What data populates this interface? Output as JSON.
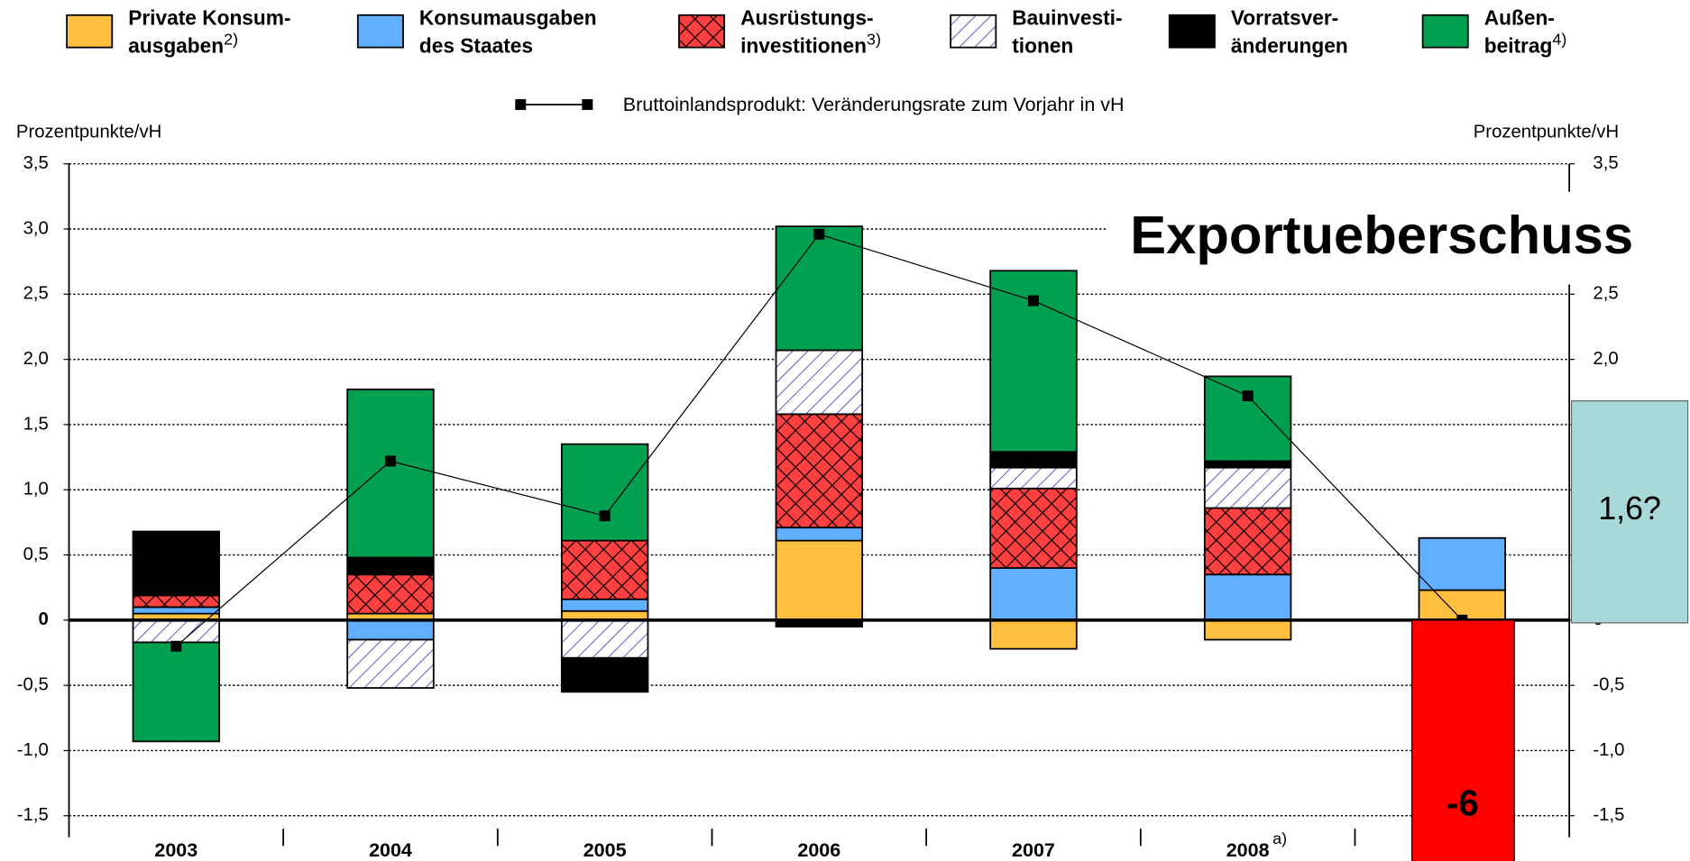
{
  "chart_data": {
    "type": "bar",
    "stacked": true,
    "categories": [
      "2003",
      "2004",
      "2005",
      "2006",
      "2007",
      "2008",
      null
    ],
    "category_notes": [
      null,
      null,
      null,
      null,
      null,
      "a)",
      null
    ],
    "y_label": "Prozentpunkte/vH",
    "y2_label": "Prozentpunkte/vH",
    "ylim": [
      -1.5,
      3.5
    ],
    "yticks": [
      {
        "value": -1.5,
        "label": "-1,5"
      },
      {
        "value": -1.0,
        "label": "-1,0"
      },
      {
        "value": -0.5,
        "label": "-0,5"
      },
      0,
      {
        "value": 0.5,
        "label": "0,5"
      },
      {
        "value": 1.0,
        "label": "1,0"
      },
      {
        "value": 1.5,
        "label": "1,5"
      },
      {
        "value": 2.0,
        "label": "2,0"
      },
      {
        "value": 2.5,
        "label": "2,5"
      },
      {
        "value": 3.0,
        "label": "3,0"
      },
      {
        "value": 3.5,
        "label": "3,5"
      }
    ],
    "grid": true,
    "legend": "top",
    "series": [
      {
        "name": "Private Konsum-\nausgaben",
        "note": "2)",
        "color": "#ffc040",
        "values": [
          0.05,
          0.05,
          0.07,
          0.61,
          -0.22,
          -0.15,
          0.23
        ]
      },
      {
        "name": "Konsumausgaben\ndes Staates",
        "color": "#60b0ff",
        "values": [
          0.05,
          -0.15,
          0.09,
          0.1,
          0.4,
          0.35,
          0.4
        ]
      },
      {
        "name": "Ausrüstungs-\ninvestitionen",
        "note": "3)",
        "color": "#ff4040",
        "hatch": "cross",
        "values": [
          0.09,
          0.3,
          0.45,
          0.87,
          0.61,
          0.51,
          null
        ]
      },
      {
        "name": "Bauinvesti-\ntionen",
        "color": "#ffffff",
        "hatch": "diagonal",
        "values": [
          -0.17,
          -0.37,
          -0.29,
          0.49,
          0.16,
          0.31,
          null
        ]
      },
      {
        "name": "Vorratsver-\nänderungen",
        "color": "#000000",
        "values": [
          0.49,
          0.13,
          -0.26,
          -0.05,
          0.12,
          0.05,
          null
        ]
      },
      {
        "name": "Außen-\nbeitrag",
        "note": "4)",
        "color": "#00a050",
        "values": [
          -0.76,
          1.29,
          0.74,
          0.95,
          1.39,
          0.65,
          null
        ]
      }
    ],
    "line": {
      "name": "Bruttoinlandsprodukt: Veränderungsrate zum Vorjahr in vH",
      "color": "#000000",
      "values": [
        -0.2,
        1.22,
        0.8,
        2.96,
        2.45,
        1.72,
        0
      ]
    },
    "annotations": {
      "export": "Exportueberschuss",
      "guess": "1,6?",
      "drop": "-6"
    }
  }
}
